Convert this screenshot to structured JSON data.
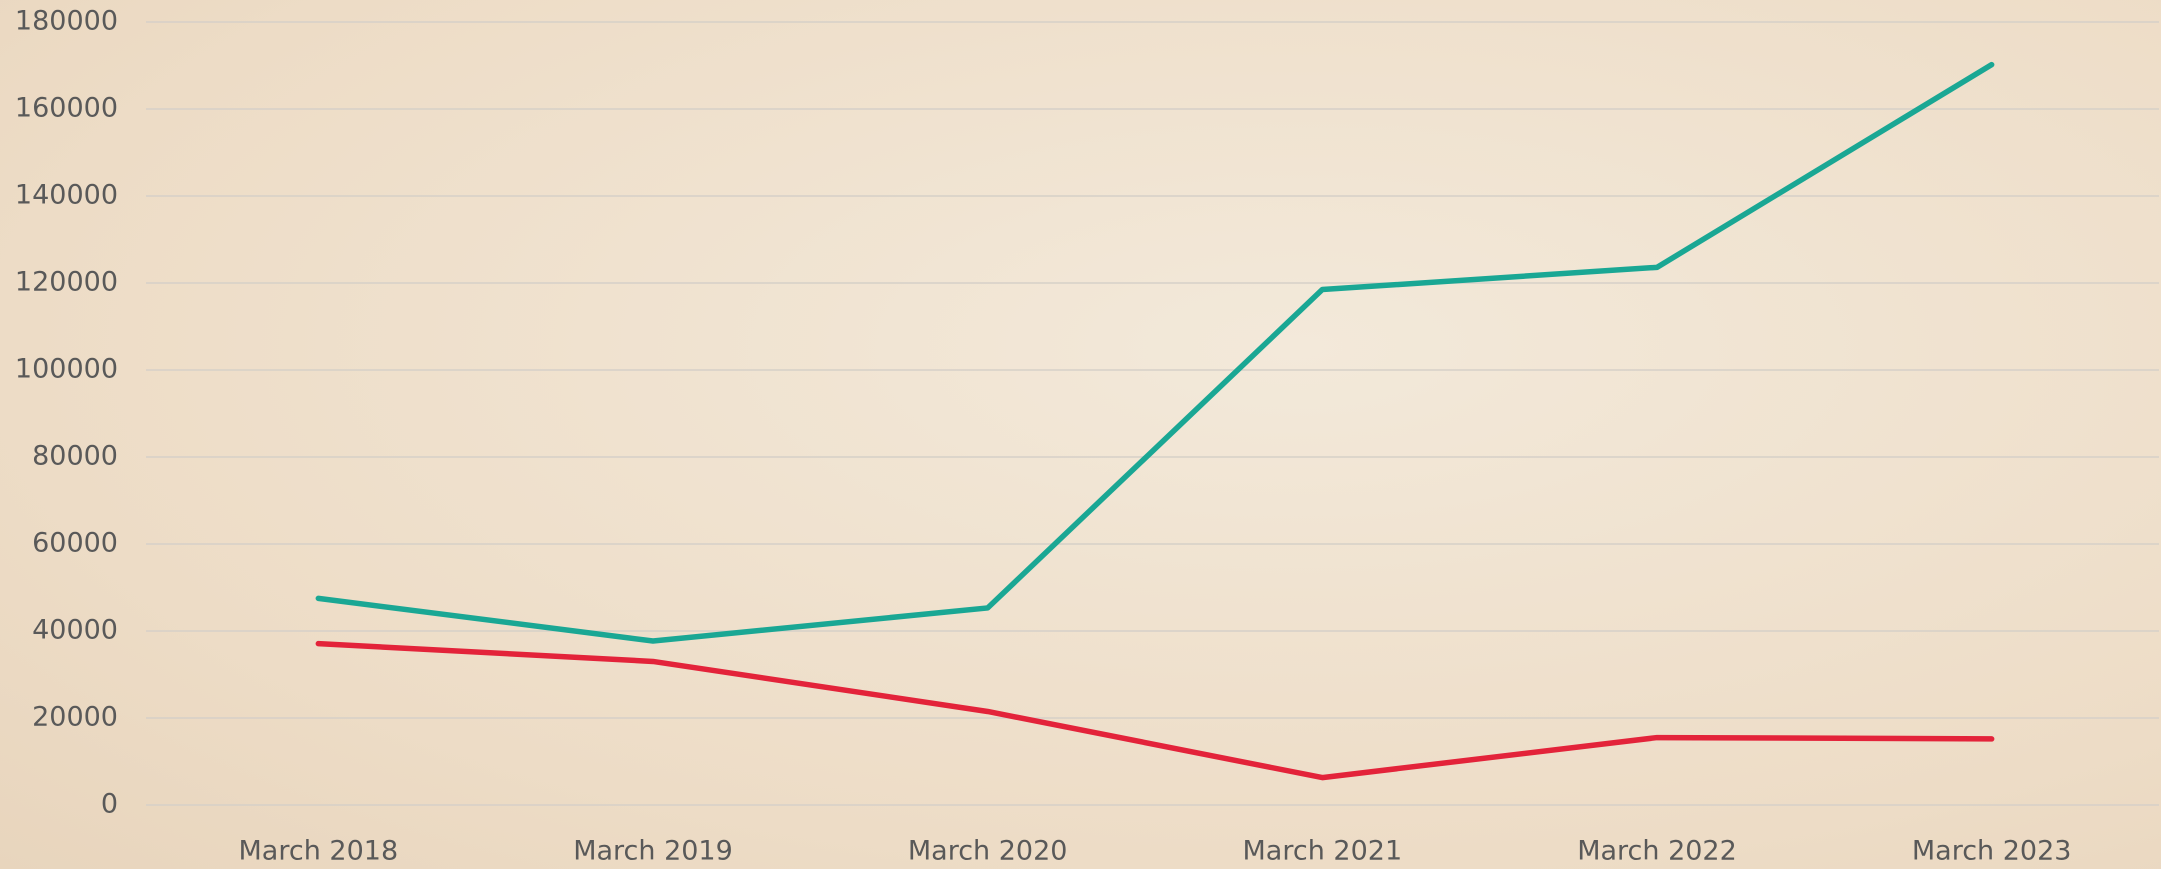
{
  "chart_data": {
    "type": "line",
    "categories": [
      "March 2018",
      "March 2019",
      "March 2020",
      "March 2021",
      "March 2022",
      "March 2023"
    ],
    "series": [
      {
        "color": "#1aa794",
        "values": [
          47500,
          37700,
          45300,
          118500,
          123600,
          170200
        ]
      },
      {
        "color": "#e3233a",
        "values": [
          37100,
          33000,
          21500,
          6300,
          15500,
          15200
        ]
      }
    ],
    "ylim": [
      0,
      180000
    ],
    "yticks": [
      0,
      20000,
      40000,
      60000,
      80000,
      100000,
      120000,
      140000,
      160000,
      180000
    ],
    "grid": true
  }
}
